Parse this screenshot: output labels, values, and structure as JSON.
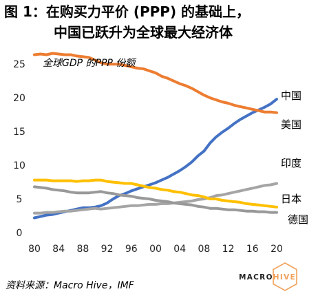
{
  "title": {
    "line1": "图 1：在购买力平价 (PPP) 的基础上，",
    "line2": "中国已跃升为全球最大经济体"
  },
  "source": "资料来源：Macro Hive，IMF",
  "logo": {
    "part1": "MACRO",
    "part2": "HIVE",
    "accent_color": "#f0a15a"
  },
  "chart_data": {
    "type": "line",
    "annotation": "全球GDP 的PPP 份额",
    "x": [
      1980,
      1981,
      1982,
      1983,
      1984,
      1985,
      1986,
      1987,
      1988,
      1989,
      1990,
      1991,
      1992,
      1993,
      1994,
      1995,
      1996,
      1997,
      1998,
      1999,
      2000,
      2001,
      2002,
      2003,
      2004,
      2005,
      2006,
      2007,
      2008,
      2009,
      2010,
      2011,
      2012,
      2013,
      2014,
      2015,
      2016,
      2017,
      2018,
      2019,
      2020
    ],
    "x_tick_values": [
      1980,
      1984,
      1988,
      1992,
      1996,
      2000,
      2004,
      2008,
      2012,
      2016,
      2020
    ],
    "x_tick_labels": [
      "80",
      "84",
      "88",
      "92",
      "96",
      "00",
      "04",
      "08",
      "12",
      "16",
      "20"
    ],
    "ylim": [
      0,
      29
    ],
    "y_ticks": [
      0,
      5,
      10,
      15,
      20,
      25
    ],
    "grid": false,
    "legend": "direct labels at right end of lines",
    "series": [
      {
        "name": "中国",
        "color": "#4472c4",
        "values": [
          2.2,
          2.4,
          2.6,
          2.7,
          2.9,
          3.1,
          3.3,
          3.5,
          3.7,
          3.7,
          3.8,
          4.0,
          4.4,
          5.0,
          5.5,
          5.8,
          6.2,
          6.5,
          6.8,
          7.1,
          7.4,
          7.8,
          8.2,
          8.7,
          9.2,
          9.8,
          10.5,
          11.4,
          12.1,
          13.3,
          14.2,
          14.9,
          15.5,
          16.2,
          16.8,
          17.3,
          17.8,
          18.2,
          18.6,
          19.1,
          19.8
        ]
      },
      {
        "name": "美国",
        "color": "#ed7d31",
        "values": [
          26.4,
          26.5,
          26.4,
          26.6,
          26.5,
          26.4,
          26.4,
          26.2,
          26.1,
          26.0,
          25.6,
          25.2,
          25.0,
          25.0,
          25.0,
          24.8,
          24.6,
          24.4,
          24.3,
          24.0,
          23.7,
          23.2,
          22.9,
          22.5,
          22.1,
          21.8,
          21.4,
          20.9,
          20.4,
          20.0,
          19.7,
          19.4,
          19.2,
          18.9,
          18.7,
          18.5,
          18.3,
          18.1,
          17.9,
          17.9,
          17.8
        ]
      },
      {
        "name": "印度",
        "color": "#a5a5a5",
        "values": [
          2.9,
          2.9,
          3.0,
          3.0,
          3.1,
          3.2,
          3.2,
          3.3,
          3.4,
          3.5,
          3.6,
          3.5,
          3.6,
          3.7,
          3.8,
          3.9,
          4.0,
          4.0,
          4.1,
          4.2,
          4.2,
          4.3,
          4.3,
          4.4,
          4.5,
          4.6,
          4.7,
          4.9,
          5.0,
          5.2,
          5.5,
          5.6,
          5.8,
          6.0,
          6.2,
          6.4,
          6.6,
          6.8,
          7.0,
          7.1,
          7.3
        ]
      },
      {
        "name": "日本",
        "color": "#ffc000",
        "values": [
          7.8,
          7.8,
          7.8,
          7.7,
          7.7,
          7.7,
          7.7,
          7.6,
          7.7,
          7.7,
          7.8,
          7.8,
          7.6,
          7.5,
          7.4,
          7.3,
          7.3,
          7.1,
          6.9,
          6.7,
          6.6,
          6.4,
          6.3,
          6.1,
          6.0,
          5.8,
          5.6,
          5.5,
          5.3,
          5.0,
          5.0,
          4.8,
          4.7,
          4.6,
          4.5,
          4.3,
          4.2,
          4.1,
          4.0,
          3.9,
          3.8
        ]
      },
      {
        "name": "德国",
        "color": "#999999",
        "values": [
          6.8,
          6.7,
          6.6,
          6.4,
          6.3,
          6.2,
          6.0,
          5.9,
          5.9,
          5.9,
          6.0,
          6.1,
          5.9,
          5.8,
          5.6,
          5.5,
          5.4,
          5.2,
          5.1,
          5.0,
          4.8,
          4.7,
          4.6,
          4.4,
          4.3,
          4.2,
          4.1,
          3.9,
          3.8,
          3.6,
          3.6,
          3.5,
          3.4,
          3.4,
          3.3,
          3.2,
          3.2,
          3.1,
          3.1,
          3.0,
          3.0
        ]
      }
    ]
  }
}
